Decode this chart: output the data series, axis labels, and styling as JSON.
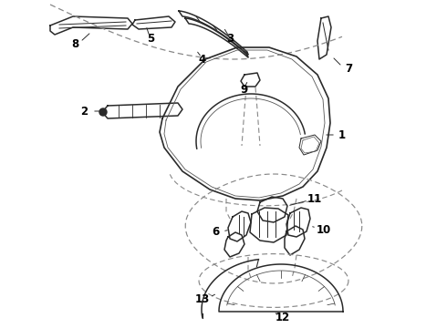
{
  "bg_color": "#ffffff",
  "line_color": "#2a2a2a",
  "dash_color": "#888888",
  "label_color": "#000000",
  "label_fontsize": 8.5
}
